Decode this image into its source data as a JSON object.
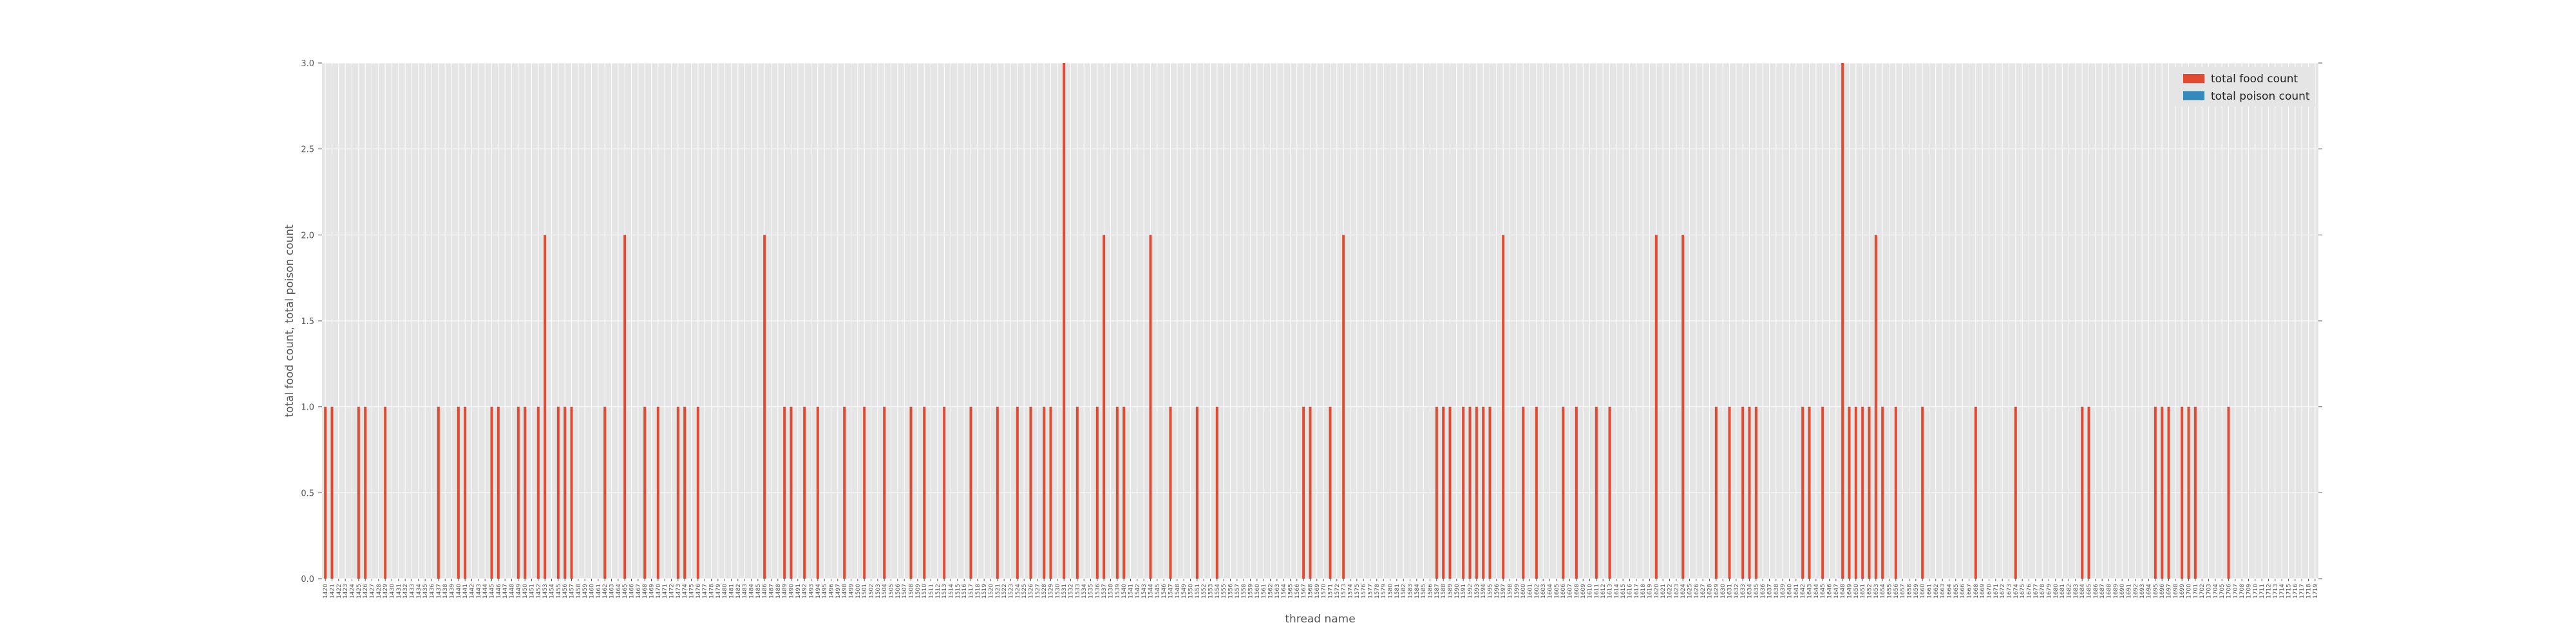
{
  "chart_data": {
    "type": "bar",
    "title": "",
    "xlabel": "thread name",
    "ylabel": "total food count, total poison count",
    "ylim": [
      0,
      3.0
    ],
    "yticks": [
      "0.0",
      "0.5",
      "1.0",
      "1.5",
      "2.0",
      "2.5",
      "3.0"
    ],
    "ytick_values": [
      0,
      0.5,
      1.0,
      1.5,
      2.0,
      2.5,
      3.0
    ],
    "grid": true,
    "legend_position": "top-right",
    "colors": {
      "food": "#e24a33",
      "poison": "#348abd",
      "background": "#e5e5e5",
      "grid": "#ffffff"
    },
    "category_start": 1420,
    "category_count": 300,
    "series": [
      {
        "name": "total food count",
        "values": [
          1,
          1,
          0,
          0,
          0,
          1,
          1,
          0,
          0,
          1,
          0,
          0,
          0,
          0,
          0,
          0,
          0,
          1,
          0,
          0,
          1,
          1,
          0,
          0,
          0,
          1,
          1,
          0,
          0,
          1,
          1,
          0,
          1,
          2,
          0,
          1,
          1,
          1,
          0,
          0,
          0,
          0,
          1,
          0,
          0,
          2,
          0,
          0,
          1,
          0,
          1,
          0,
          0,
          1,
          1,
          0,
          1,
          0,
          0,
          0,
          0,
          0,
          0,
          0,
          0,
          0,
          2,
          0,
          0,
          1,
          1,
          0,
          1,
          0,
          1,
          0,
          0,
          0,
          1,
          0,
          0,
          1,
          0,
          0,
          1,
          0,
          0,
          0,
          1,
          0,
          1,
          0,
          0,
          1,
          0,
          0,
          0,
          1,
          0,
          0,
          0,
          1,
          0,
          0,
          1,
          0,
          1,
          0,
          1,
          1,
          0,
          3,
          0,
          1,
          0,
          0,
          1,
          2,
          0,
          1,
          1,
          0,
          0,
          0,
          2,
          0,
          0,
          1,
          0,
          0,
          0,
          1,
          0,
          0,
          1,
          0,
          0,
          0,
          0,
          0,
          0,
          0,
          0,
          0,
          0,
          0,
          0,
          1,
          1,
          0,
          0,
          1,
          0,
          2,
          0,
          0,
          0,
          0,
          0,
          0,
          0,
          0,
          0,
          0,
          0,
          0,
          0,
          1,
          1,
          1,
          0,
          1,
          1,
          1,
          1,
          1,
          0,
          2,
          0,
          0,
          1,
          0,
          1,
          0,
          0,
          0,
          1,
          0,
          1,
          0,
          0,
          1,
          0,
          1,
          0,
          0,
          0,
          0,
          0,
          0,
          2,
          0,
          0,
          0,
          2,
          0,
          0,
          0,
          0,
          1,
          0,
          1,
          0,
          1,
          1,
          1,
          0,
          0,
          0,
          0,
          0,
          0,
          1,
          1,
          0,
          1,
          0,
          0,
          3,
          1,
          1,
          1,
          1,
          2,
          1,
          0,
          1,
          0,
          0,
          0,
          1,
          0,
          0,
          0,
          0,
          0,
          0,
          0,
          1,
          0,
          0,
          0,
          0,
          0,
          1,
          0,
          0,
          0,
          0,
          0,
          0,
          0,
          0,
          0,
          1,
          1,
          0,
          0,
          0,
          0,
          0,
          0,
          0,
          0,
          0,
          1,
          1,
          1,
          0,
          1,
          1,
          1,
          0,
          0,
          0,
          0,
          1,
          0,
          0,
          0,
          0,
          0,
          0,
          0,
          0,
          0,
          0,
          0,
          0,
          0,
          0,
          0,
          0,
          0,
          0
        ]
      },
      {
        "name": "total poison count",
        "values": []
      }
    ]
  }
}
